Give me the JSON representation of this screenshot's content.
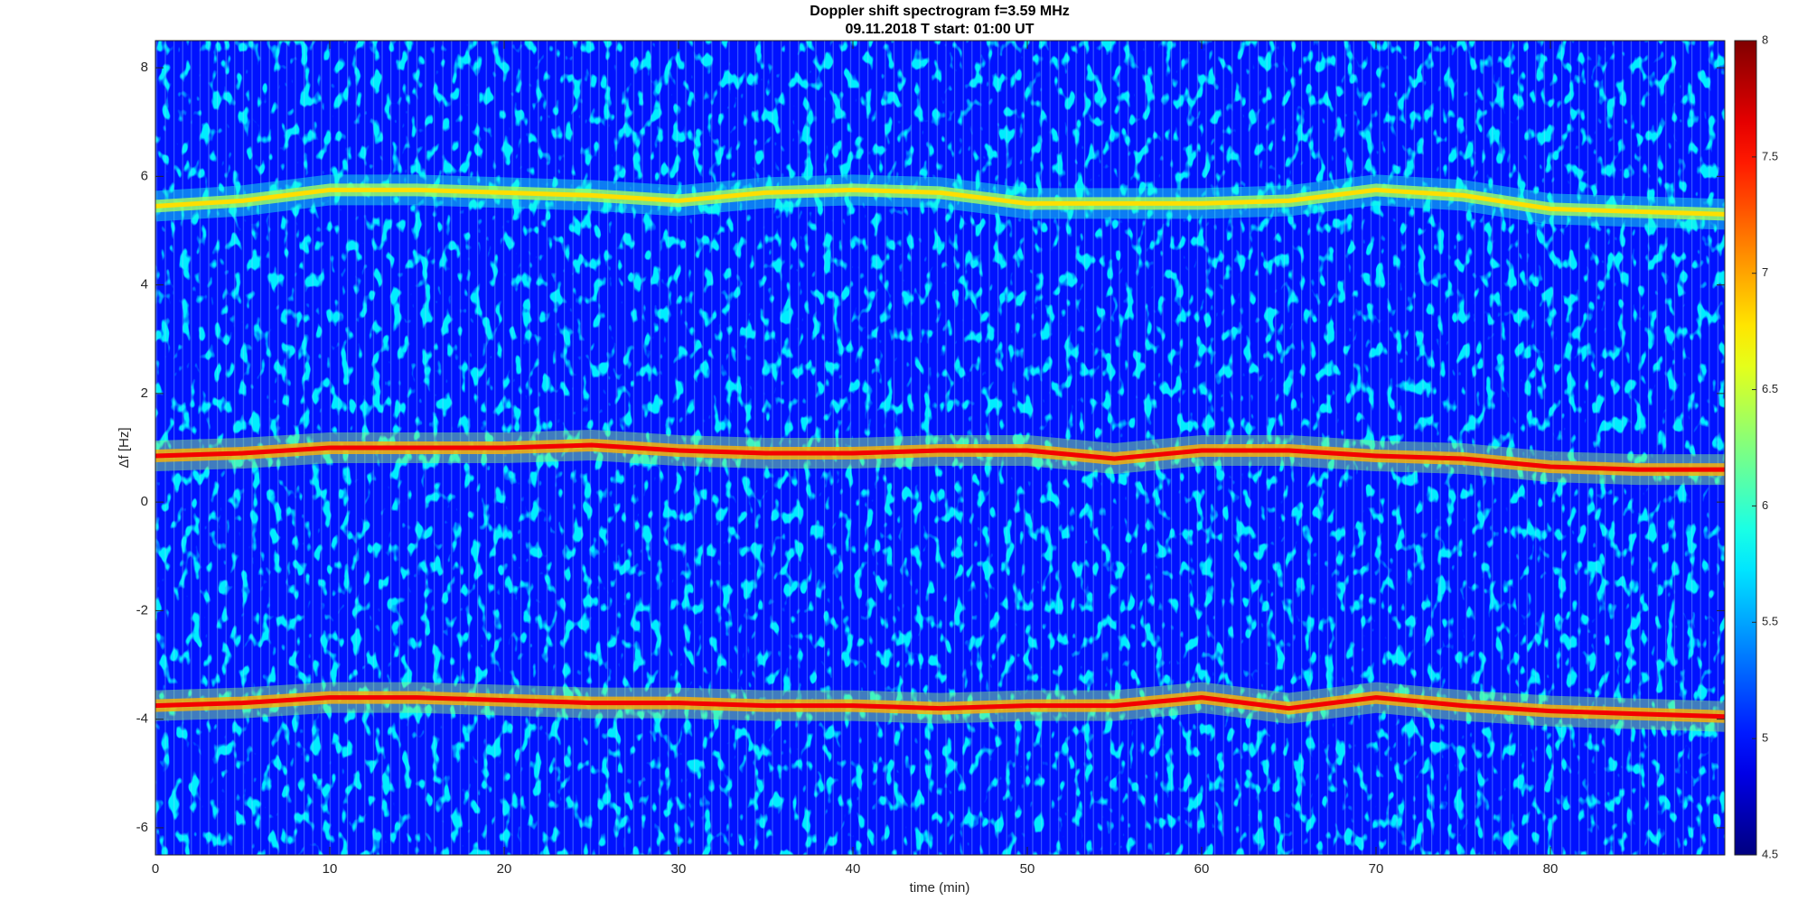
{
  "chart_data": {
    "type": "spectrogram",
    "title": "Doppler shift spectrogram f=3.59 MHz",
    "subtitle": "09.11.2018   T start: 01:00 UT",
    "xlabel": "time (min)",
    "ylabel": "Δf [Hz]",
    "x": [
      0,
      5,
      10,
      15,
      20,
      25,
      30,
      35,
      40,
      45,
      50,
      55,
      60,
      65,
      70,
      75,
      80,
      85,
      90
    ],
    "series": [
      {
        "level": 6.8,
        "values": [
          5.45,
          5.55,
          5.75,
          5.75,
          5.7,
          5.65,
          5.55,
          5.7,
          5.75,
          5.7,
          5.5,
          5.5,
          5.5,
          5.55,
          5.75,
          5.65,
          5.4,
          5.35,
          5.3
        ]
      },
      {
        "level": 7.6,
        "values": [
          0.85,
          0.9,
          1.0,
          1.0,
          1.0,
          1.05,
          0.95,
          0.9,
          0.9,
          0.95,
          0.95,
          0.8,
          0.95,
          0.95,
          0.85,
          0.8,
          0.65,
          0.6,
          0.6
        ]
      },
      {
        "level": 7.6,
        "values": [
          -3.75,
          -3.7,
          -3.6,
          -3.6,
          -3.65,
          -3.7,
          -3.7,
          -3.75,
          -3.75,
          -3.8,
          -3.75,
          -3.75,
          -3.6,
          -3.8,
          -3.6,
          -3.75,
          -3.85,
          -3.9,
          -3.95
        ]
      }
    ],
    "background_level": 5.0,
    "colormap": "jet",
    "clim": [
      4.5,
      8
    ],
    "cticks": [
      4.5,
      5,
      5.5,
      6,
      6.5,
      7,
      7.5,
      8
    ],
    "xlim": [
      0,
      90
    ],
    "xticks": [
      0,
      10,
      20,
      30,
      40,
      50,
      60,
      70,
      80
    ],
    "ylim": [
      -6.5,
      8.5
    ],
    "yticks": [
      -6,
      -4,
      -2,
      0,
      2,
      4,
      6,
      8
    ]
  }
}
